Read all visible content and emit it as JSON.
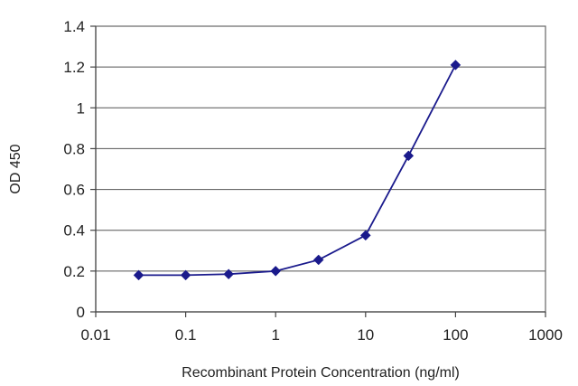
{
  "chart_data": {
    "type": "line",
    "title": "",
    "xlabel": "Recombinant Protein Concentration (ng/ml)",
    "ylabel": "OD 450",
    "xscale": "log",
    "xlim": [
      0.01,
      1000
    ],
    "ylim": [
      0,
      1.4
    ],
    "x_ticks": [
      0.01,
      0.1,
      1,
      10,
      100,
      1000
    ],
    "x_tick_labels": [
      "0.01",
      "0.1",
      "1",
      "10",
      "100",
      "1000"
    ],
    "y_ticks": [
      0,
      0.2,
      0.4,
      0.6,
      0.8,
      1,
      1.2,
      1.4
    ],
    "y_tick_labels": [
      "0",
      "0.2",
      "0.4",
      "0.6",
      "0.8",
      "1",
      "1.2",
      "1.4"
    ],
    "grid": "horizontal",
    "legend": "none",
    "series": [
      {
        "color": "#1a1a8c",
        "marker": "diamond",
        "x": [
          0.03,
          0.1,
          0.3,
          1,
          3,
          10,
          30,
          100
        ],
        "y": [
          0.18,
          0.18,
          0.185,
          0.2,
          0.255,
          0.375,
          0.765,
          1.21
        ]
      }
    ]
  }
}
